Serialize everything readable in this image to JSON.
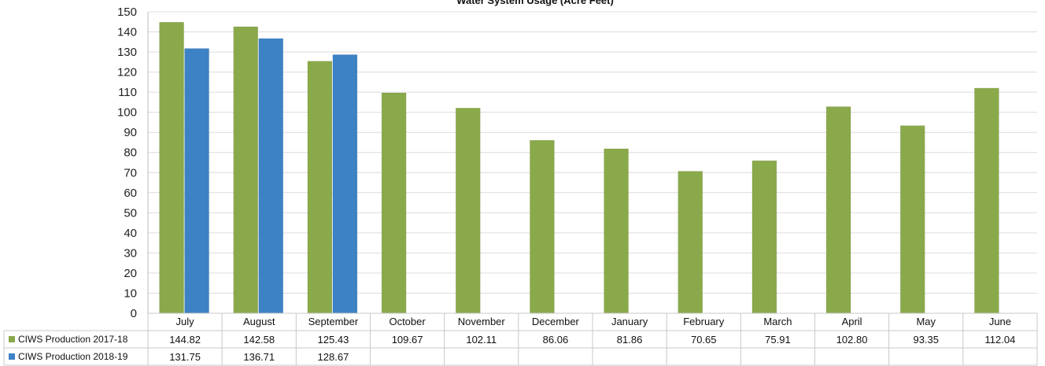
{
  "chart_data": {
    "type": "bar",
    "title": "Water System Usage (Acre Feet)",
    "categories": [
      "July",
      "August",
      "September",
      "October",
      "November",
      "December",
      "January",
      "February",
      "March",
      "April",
      "May",
      "June"
    ],
    "series": [
      {
        "name": "CIWS Production 2017-18",
        "color": "#8aa94a",
        "values": [
          144.82,
          142.58,
          125.43,
          109.67,
          102.11,
          86.06,
          81.86,
          70.65,
          75.91,
          102.8,
          93.35,
          112.04
        ],
        "labels": [
          "144.82",
          "142.58",
          "125.43",
          "109.67",
          "102.11",
          "86.06",
          "81.86",
          "70.65",
          "75.91",
          "102.80",
          "93.35",
          "112.04"
        ]
      },
      {
        "name": "CIWS Production 2018-19",
        "color": "#3d82c4",
        "values": [
          131.75,
          136.71,
          128.67,
          null,
          null,
          null,
          null,
          null,
          null,
          null,
          null,
          null
        ],
        "labels": [
          "131.75",
          "136.71",
          "128.67",
          "",
          "",
          "",
          "",
          "",
          "",
          "",
          "",
          ""
        ]
      }
    ],
    "ylim": [
      0,
      150
    ],
    "yticks": [
      "0",
      "10",
      "20",
      "30",
      "40",
      "50",
      "60",
      "70",
      "80",
      "90",
      "100",
      "110",
      "120",
      "130",
      "140",
      "150"
    ],
    "grid": true,
    "legend": "data-table-left"
  }
}
